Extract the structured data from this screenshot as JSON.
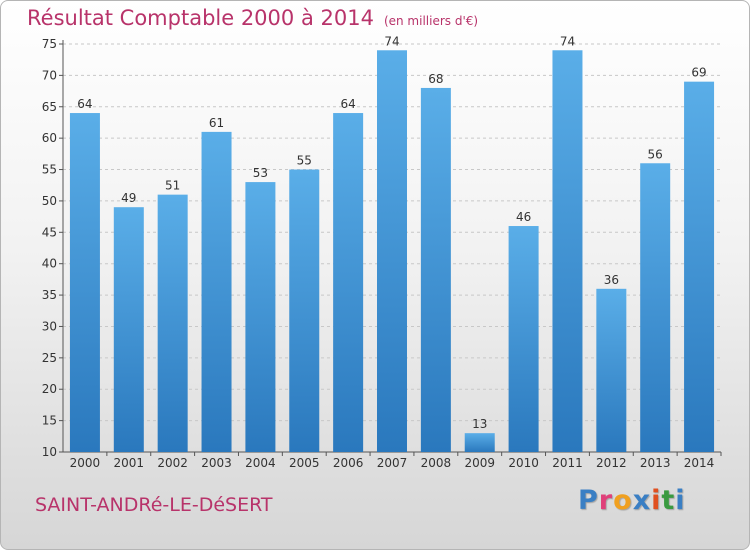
{
  "header": {
    "title": "Résultat Comptable 2000 à 2014",
    "subtitle": "(en milliers d'€)"
  },
  "footer": {
    "location": "SAINT-ANDRé-LE-DéSERT",
    "logo_text": "Proxiti"
  },
  "colors": {
    "title": "#b8336a",
    "bar_top": "#5aaee8",
    "bar_bottom": "#2a78bd",
    "logo": [
      "#3a7fc4",
      "#e0407a",
      "#f0a020",
      "#3a7fc4",
      "#e05020",
      "#3a9a40",
      "#3a7fc4"
    ]
  },
  "chart_data": {
    "type": "bar",
    "title": "Résultat Comptable 2000 à 2014",
    "subtitle": "(en milliers d'€)",
    "categories": [
      "2000",
      "2001",
      "2002",
      "2003",
      "2004",
      "2005",
      "2006",
      "2007",
      "2008",
      "2009",
      "2010",
      "2011",
      "2012",
      "2013",
      "2014"
    ],
    "values": [
      64,
      49,
      51,
      61,
      53,
      55,
      64,
      74,
      68,
      13,
      46,
      74,
      36,
      56,
      69
    ],
    "ylim": [
      10,
      75
    ],
    "yticks": [
      10,
      15,
      20,
      25,
      30,
      35,
      40,
      45,
      50,
      55,
      60,
      65,
      70,
      75
    ],
    "grid": true,
    "data_labels": true
  }
}
